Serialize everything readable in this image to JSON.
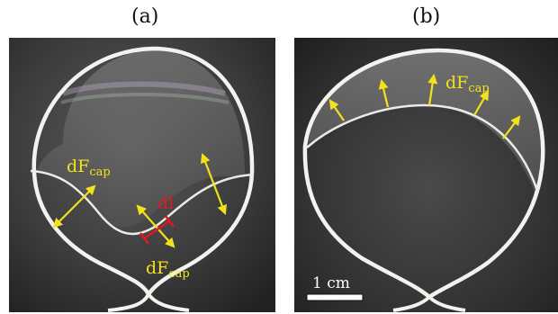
{
  "panels": [
    {
      "label": "(a)",
      "annotations": {
        "force_left": {
          "main": "dF",
          "sub": "cap"
        },
        "force_bottom": {
          "main": "dF",
          "sub": "cap"
        },
        "length_element": "dl"
      }
    },
    {
      "label": "(b)",
      "annotations": {
        "force_top": {
          "main": "dF",
          "sub": "cap"
        },
        "scale_bar": "1 cm"
      }
    }
  ],
  "colors": {
    "force_arrow": "#f2e21c",
    "length_marker": "#e0181f",
    "wire": "#f2f2ee",
    "background": "#3a3a3a"
  }
}
